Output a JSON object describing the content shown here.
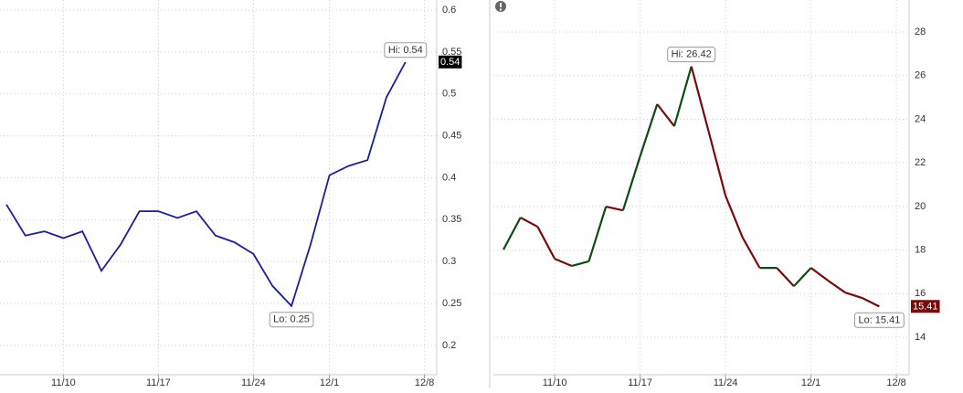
{
  "chart_data": [
    {
      "type": "line",
      "categories": [
        null,
        null,
        null,
        "11/10",
        null,
        null,
        null,
        null,
        "11/17",
        null,
        null,
        null,
        null,
        "11/24",
        null,
        null,
        null,
        "12/1",
        null,
        null,
        null,
        null,
        "12/8"
      ],
      "series": [
        {
          "color": "#1c1ca0",
          "values": [
            0.368,
            0.331,
            0.336,
            0.328,
            0.336,
            0.289,
            0.32,
            0.36,
            0.36,
            0.352,
            0.36,
            0.331,
            0.323,
            0.309,
            0.271,
            0.247,
            0.32,
            0.403,
            0.414,
            0.421,
            0.496,
            0.538,
            null
          ]
        }
      ],
      "ylim": [
        0.165,
        0.612
      ],
      "yticks": [
        0.2,
        0.25,
        0.3,
        0.35,
        0.4,
        0.45,
        0.5,
        0.55,
        0.6
      ],
      "grid": true,
      "high_label": "Hi: 0.54",
      "low_label": "Lo: 0.25",
      "last_label": "0.54",
      "last_color": "#000000"
    },
    {
      "type": "updown",
      "categories": [
        null,
        null,
        null,
        "11/10",
        null,
        null,
        null,
        null,
        "11/17",
        null,
        null,
        null,
        null,
        "11/24",
        null,
        null,
        null,
        null,
        "12/1",
        null,
        null,
        null,
        null,
        "12/8"
      ],
      "series": [
        {
          "up_color": "#0b4d12",
          "down_color": "#7a0a0a",
          "values": [
            18.02,
            19.49,
            19.07,
            17.6,
            17.27,
            17.48,
            19.99,
            19.82,
            22.3,
            24.69,
            23.68,
            26.42,
            23.47,
            20.49,
            18.57,
            17.18,
            17.18,
            16.34,
            17.18,
            16.6,
            16.05,
            15.8,
            15.41,
            null
          ]
        }
      ],
      "ylim": [
        12.28,
        29.47
      ],
      "yticks": [
        14,
        16,
        18,
        20,
        22,
        24,
        26,
        28
      ],
      "grid": true,
      "high_label": "Hi: 26.42",
      "low_label": "Lo: 15.41",
      "last_label": "15.41",
      "last_color": "#7a0a0a"
    }
  ]
}
